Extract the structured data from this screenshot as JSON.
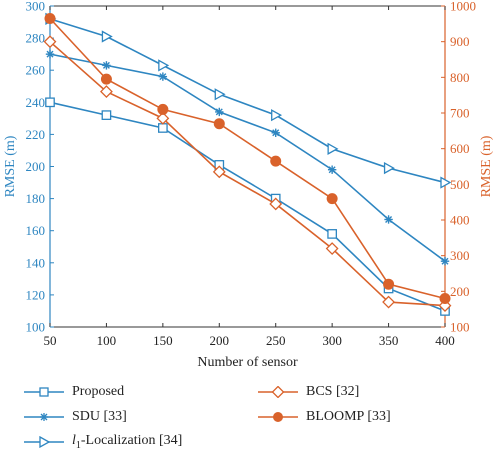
{
  "chart_data": {
    "type": "line",
    "xlabel": "Number of sensor",
    "ylabel_left": "RMSE (m)",
    "ylabel_right": "RMSE (m)",
    "x": [
      50,
      100,
      150,
      200,
      250,
      300,
      350,
      400
    ],
    "xlim": [
      50,
      400
    ],
    "ylim_left": [
      100,
      300
    ],
    "ylim_right": [
      100,
      1000
    ],
    "yticks_left": [
      100,
      120,
      140,
      160,
      180,
      200,
      220,
      240,
      260,
      280,
      300
    ],
    "yticks_right": [
      100,
      200,
      300,
      400,
      500,
      600,
      700,
      800,
      900,
      1000
    ],
    "series": [
      {
        "name": "Proposed",
        "axis": "left",
        "marker": "square",
        "color": "#2e86c1",
        "values": [
          240,
          232,
          224,
          201,
          180,
          158,
          124,
          110
        ]
      },
      {
        "name": "SDU [33]",
        "axis": "left",
        "marker": "asterisk",
        "color": "#2e86c1",
        "values": [
          270,
          263,
          256,
          234,
          221,
          198,
          167,
          141
        ]
      },
      {
        "name": "l1-Localization [34]",
        "axis": "left",
        "marker": "triangle-right",
        "color": "#2e86c1",
        "values": [
          292,
          281,
          263,
          245,
          232,
          211,
          199,
          190
        ]
      },
      {
        "name": "BCS [32]",
        "axis": "right",
        "marker": "diamond",
        "color": "#d9622b",
        "values": [
          900,
          760,
          685,
          535,
          445,
          320,
          170,
          160
        ]
      },
      {
        "name": "BLOOMP [33]",
        "axis": "right",
        "marker": "circle",
        "color": "#d9622b",
        "values": [
          965,
          795,
          710,
          670,
          565,
          460,
          220,
          180
        ]
      }
    ],
    "legend_position": "bottom",
    "grid": false
  },
  "legend": {
    "proposed": "Proposed",
    "sdu": "SDU [33]",
    "l1_sub": "1",
    "l1_rest": "-Localization [34]",
    "l1_prefix": "l",
    "bcs": "BCS [32]",
    "bloomp": "BLOOMP [33]"
  },
  "colors": {
    "left_axis": "#2e86c1",
    "right_axis": "#d9622b",
    "axis": "#333333"
  }
}
